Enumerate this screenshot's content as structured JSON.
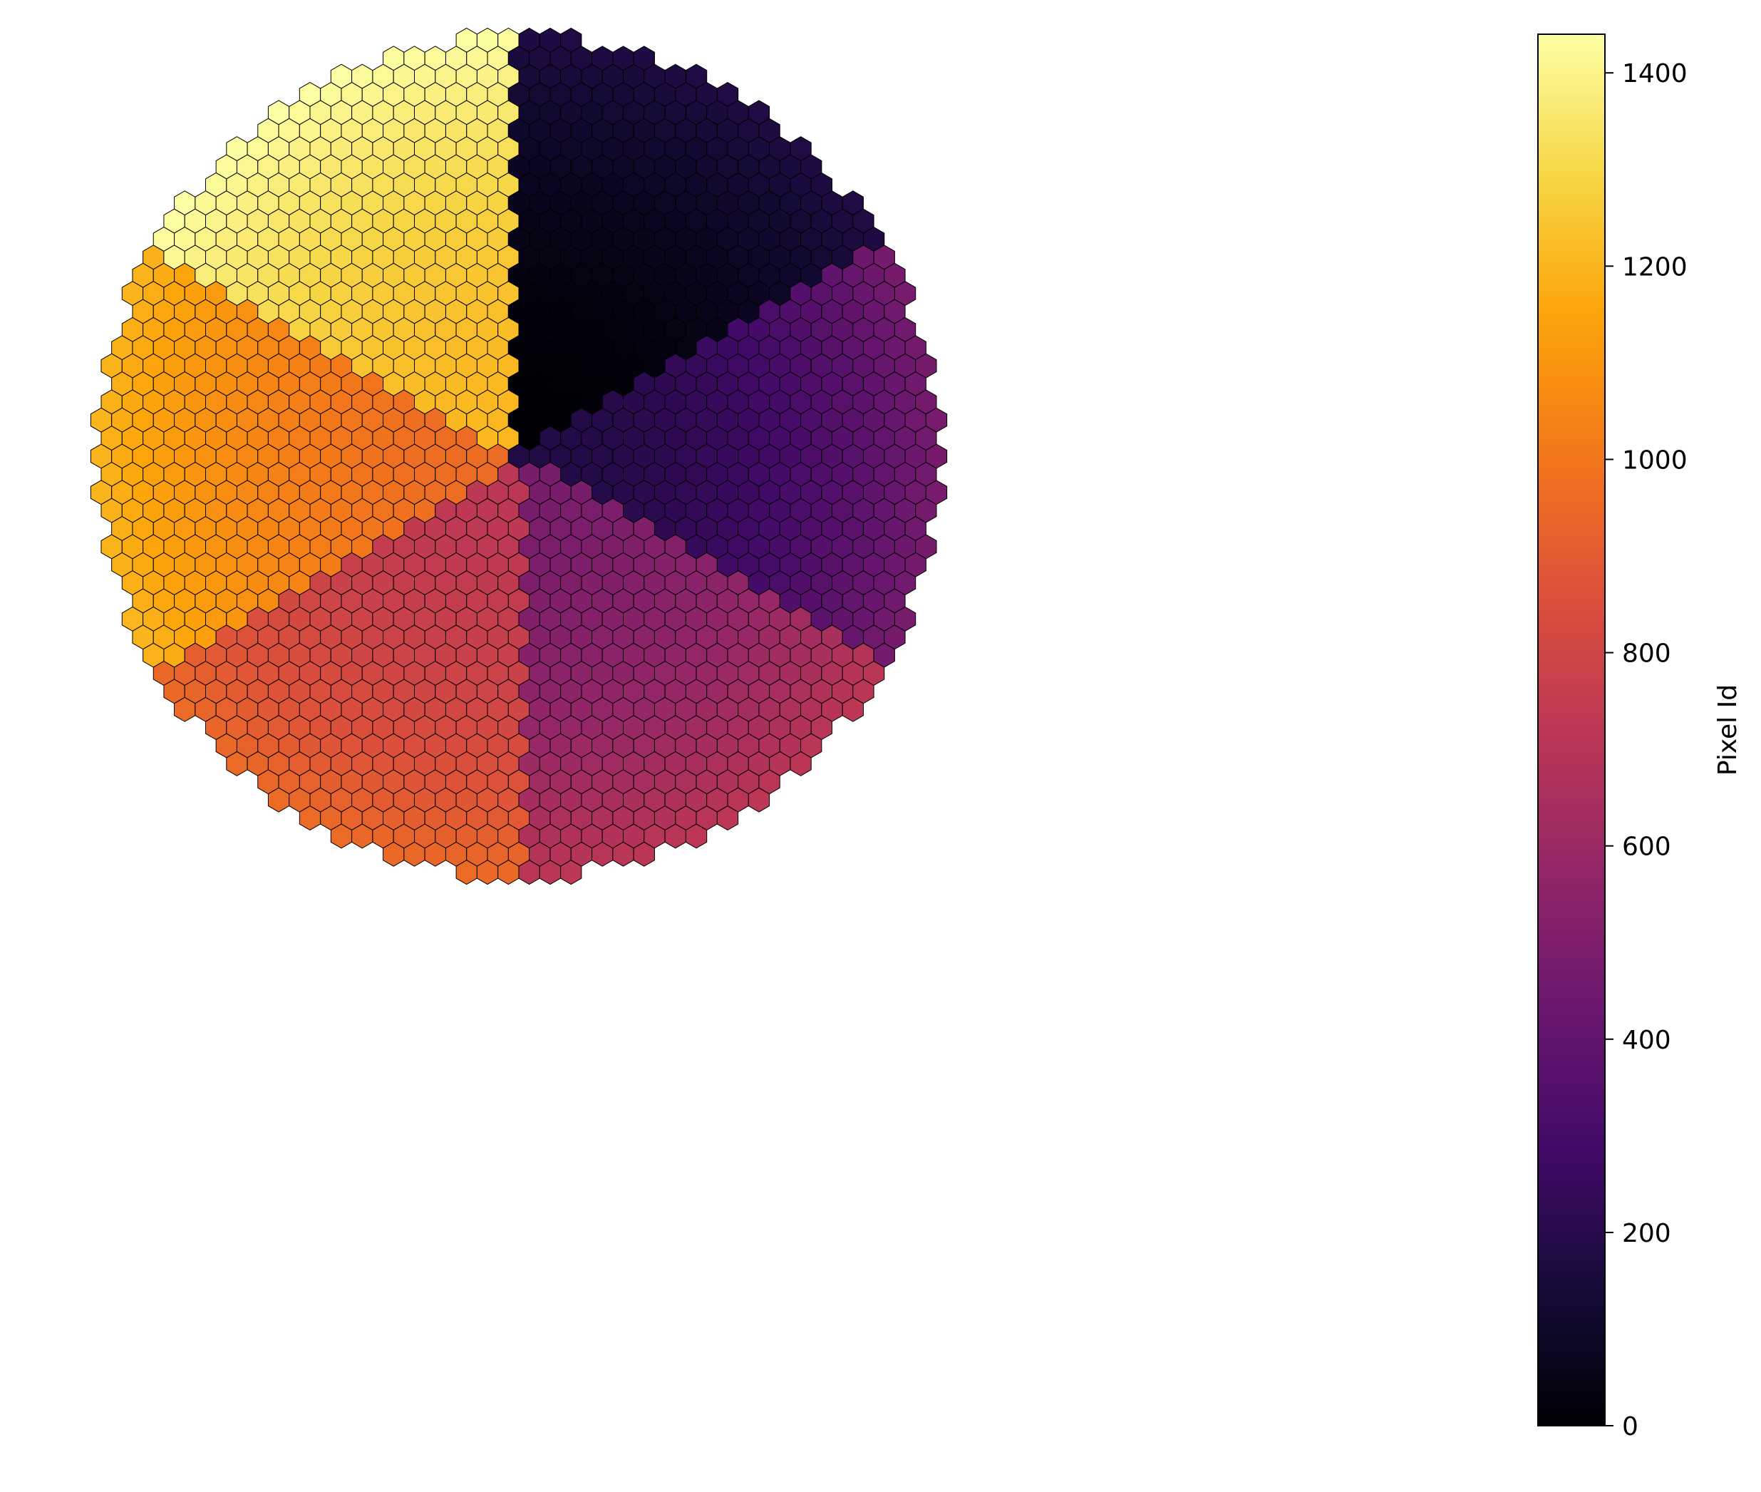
{
  "chart_data": {
    "type": "heatmap",
    "subtype": "hexagonal-camera-pixel-map",
    "title": "",
    "xlabel": "",
    "ylabel": "",
    "axes_visible": false,
    "grid": false,
    "colormap": "inferno",
    "value_range": [
      0,
      1440
    ],
    "pixel_count": 1440,
    "pixel_edgecolor": "#000000",
    "colorbar": {
      "label": "Pixel Id",
      "placement": "right",
      "ticks": [
        0,
        200,
        400,
        600,
        800,
        1000,
        1200,
        1400
      ],
      "tick_labels": [
        "0",
        "200",
        "400",
        "600",
        "800",
        "1000",
        "1200",
        "1400"
      ]
    },
    "regions": [
      {
        "name": "top-right",
        "value_range": [
          0,
          180
        ]
      },
      {
        "name": "right",
        "value_range": [
          180,
          480
        ]
      },
      {
        "name": "bottom-right",
        "value_range": [
          480,
          720
        ]
      },
      {
        "name": "bottom-left",
        "value_range": [
          720,
          960
        ]
      },
      {
        "name": "left",
        "value_range": [
          960,
          1200
        ]
      },
      {
        "name": "top-left",
        "value_range": [
          1200,
          1440
        ]
      }
    ]
  }
}
